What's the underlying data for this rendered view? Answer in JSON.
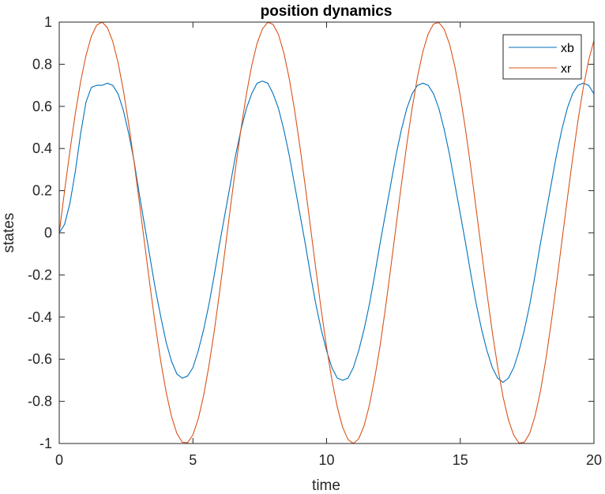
{
  "chart_data": {
    "type": "line",
    "title": "position dynamics",
    "xlabel": "time",
    "ylabel": "states",
    "xlim": [
      0,
      20
    ],
    "ylim": [
      -1,
      1
    ],
    "xticks": [
      "0",
      "5",
      "10",
      "15",
      "20"
    ],
    "yticks": [
      "-1",
      "-0.8",
      "-0.6",
      "-0.4",
      "-0.2",
      "0",
      "0.2",
      "0.4",
      "0.6",
      "0.8",
      "1"
    ],
    "grid": false,
    "legend_position": "top-right",
    "series": [
      {
        "name": "xb",
        "color": "#0072bd",
        "x": [
          0,
          0.2,
          0.4,
          0.6,
          0.8,
          1.0,
          1.2,
          1.4,
          1.6,
          1.8,
          2.0,
          2.2,
          2.4,
          2.6,
          2.8,
          3.0,
          3.2,
          3.4,
          3.6,
          3.8,
          4.0,
          4.2,
          4.4,
          4.6,
          4.8,
          5.0,
          5.2,
          5.4,
          5.6,
          5.8,
          6.0,
          6.2,
          6.4,
          6.6,
          6.8,
          7.0,
          7.2,
          7.4,
          7.6,
          7.8,
          8.0,
          8.2,
          8.4,
          8.6,
          8.8,
          9.0,
          9.2,
          9.4,
          9.6,
          9.8,
          10.0,
          10.2,
          10.4,
          10.6,
          10.8,
          11.0,
          11.2,
          11.4,
          11.6,
          11.8,
          12.0,
          12.2,
          12.4,
          12.6,
          12.8,
          13.0,
          13.2,
          13.4,
          13.6,
          13.8,
          14.0,
          14.2,
          14.4,
          14.6,
          14.8,
          15.0,
          15.2,
          15.4,
          15.6,
          15.8,
          16.0,
          16.2,
          16.4,
          16.6,
          16.8,
          17.0,
          17.2,
          17.4,
          17.6,
          17.8,
          18.0,
          18.2,
          18.4,
          18.6,
          18.8,
          19.0,
          19.2,
          19.4,
          19.6,
          19.8,
          20.0
        ],
        "y": [
          0.0,
          0.04,
          0.14,
          0.29,
          0.47,
          0.62,
          0.69,
          0.7,
          0.7,
          0.71,
          0.7,
          0.66,
          0.58,
          0.47,
          0.34,
          0.18,
          0.03,
          -0.12,
          -0.27,
          -0.4,
          -0.52,
          -0.61,
          -0.67,
          -0.69,
          -0.68,
          -0.64,
          -0.56,
          -0.46,
          -0.34,
          -0.2,
          -0.05,
          0.09,
          0.23,
          0.37,
          0.49,
          0.59,
          0.66,
          0.71,
          0.72,
          0.71,
          0.66,
          0.59,
          0.49,
          0.37,
          0.23,
          0.09,
          -0.05,
          -0.2,
          -0.34,
          -0.46,
          -0.56,
          -0.64,
          -0.69,
          -0.7,
          -0.69,
          -0.64,
          -0.56,
          -0.46,
          -0.34,
          -0.2,
          -0.05,
          0.09,
          0.23,
          0.37,
          0.49,
          0.59,
          0.66,
          0.7,
          0.71,
          0.7,
          0.66,
          0.59,
          0.49,
          0.37,
          0.23,
          0.09,
          -0.05,
          -0.2,
          -0.34,
          -0.46,
          -0.56,
          -0.64,
          -0.69,
          -0.71,
          -0.69,
          -0.64,
          -0.56,
          -0.46,
          -0.34,
          -0.2,
          -0.05,
          0.09,
          0.23,
          0.37,
          0.49,
          0.59,
          0.66,
          0.7,
          0.71,
          0.7,
          0.66
        ]
      },
      {
        "name": "xr",
        "color": "#d95319",
        "x": [
          0,
          0.2,
          0.4,
          0.6,
          0.8,
          1.0,
          1.2,
          1.4,
          1.6,
          1.8,
          2.0,
          2.2,
          2.4,
          2.6,
          2.8,
          3.0,
          3.2,
          3.4,
          3.6,
          3.8,
          4.0,
          4.2,
          4.4,
          4.6,
          4.8,
          5.0,
          5.2,
          5.4,
          5.6,
          5.8,
          6.0,
          6.2,
          6.4,
          6.6,
          6.8,
          7.0,
          7.2,
          7.4,
          7.6,
          7.8,
          8.0,
          8.2,
          8.4,
          8.6,
          8.8,
          9.0,
          9.2,
          9.4,
          9.6,
          9.8,
          10.0,
          10.2,
          10.4,
          10.6,
          10.8,
          11.0,
          11.2,
          11.4,
          11.6,
          11.8,
          12.0,
          12.2,
          12.4,
          12.6,
          12.8,
          13.0,
          13.2,
          13.4,
          13.6,
          13.8,
          14.0,
          14.2,
          14.4,
          14.6,
          14.8,
          15.0,
          15.2,
          15.4,
          15.6,
          15.8,
          16.0,
          16.2,
          16.4,
          16.6,
          16.8,
          17.0,
          17.2,
          17.4,
          17.6,
          17.8,
          18.0,
          18.2,
          18.4,
          18.6,
          18.8,
          19.0,
          19.2,
          19.4,
          19.6,
          19.8,
          20.0
        ],
        "y": [
          0.0,
          0.199,
          0.389,
          0.565,
          0.717,
          0.841,
          0.932,
          0.985,
          1.0,
          0.974,
          0.909,
          0.808,
          0.675,
          0.516,
          0.335,
          0.141,
          -0.058,
          -0.256,
          -0.443,
          -0.612,
          -0.757,
          -0.872,
          -0.952,
          -0.994,
          -0.996,
          -0.959,
          -0.883,
          -0.773,
          -0.631,
          -0.465,
          -0.279,
          -0.083,
          0.117,
          0.312,
          0.494,
          0.657,
          0.794,
          0.899,
          0.968,
          0.999,
          0.989,
          0.941,
          0.855,
          0.734,
          0.585,
          0.412,
          0.223,
          0.025,
          -0.174,
          -0.366,
          -0.544,
          -0.699,
          -0.827,
          -0.923,
          -0.981,
          -1.0,
          -0.978,
          -0.917,
          -0.819,
          -0.689,
          -0.537,
          -0.359,
          -0.166,
          0.033,
          0.231,
          0.42,
          0.591,
          0.74,
          0.859,
          0.944,
          0.991,
          0.998,
          0.966,
          0.895,
          0.788,
          0.65,
          0.487,
          0.304,
          0.108,
          -0.091,
          -0.288,
          -0.472,
          -0.638,
          -0.778,
          -0.887,
          -0.961,
          -0.998,
          -0.994,
          -0.951,
          -0.868,
          -0.751,
          -0.602,
          -0.428,
          -0.24,
          -0.042,
          0.157,
          0.35,
          0.53,
          0.688,
          0.818,
          0.913
        ]
      }
    ]
  }
}
